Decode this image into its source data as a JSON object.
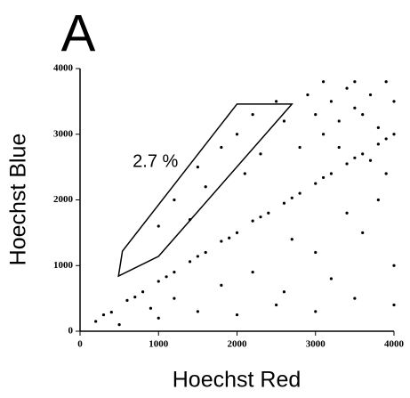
{
  "chart_data": {
    "type": "scatter",
    "panel_label": "A",
    "x_label": "Hoechst Red",
    "y_label": "Hoechst Blue",
    "xlim": [
      0,
      4000
    ],
    "ylim": [
      0,
      4000
    ],
    "xticks": [
      0,
      1000,
      2000,
      3000,
      4000
    ],
    "yticks": [
      0,
      1000,
      2000,
      3000,
      4000
    ],
    "color": "#000000",
    "x": [
      200,
      400,
      600,
      800,
      1000,
      1200,
      1400,
      1600,
      1800,
      2000,
      2200,
      2400,
      2600,
      2800,
      3000,
      3200,
      3400,
      3600,
      3800,
      4000,
      300,
      700,
      1100,
      1500,
      1900,
      2300,
      2700,
      3100,
      3500,
      3900,
      3100,
      3300,
      3500,
      3700,
      3900,
      3200,
      3400,
      3600,
      3800,
      4000,
      3000,
      3300,
      3700,
      3900,
      3500,
      2900,
      3100,
      2500,
      2600,
      2800,
      1200,
      1500,
      1800,
      2000,
      2200,
      1000,
      1600,
      2300,
      1400,
      2100,
      500,
      1000,
      1500,
      2000,
      2500,
      3000,
      3500,
      4000,
      1200,
      2200,
      3000,
      3600,
      3200,
      2700,
      3800,
      1800,
      2600,
      3400,
      4000,
      900
    ],
    "y": [
      150,
      290,
      470,
      600,
      760,
      900,
      1060,
      1200,
      1370,
      1500,
      1680,
      1800,
      1950,
      2100,
      2250,
      2400,
      2550,
      2700,
      2850,
      3000,
      250,
      520,
      830,
      1140,
      1420,
      1740,
      2030,
      2340,
      2640,
      2930,
      3000,
      3200,
      3400,
      3600,
      3800,
      3500,
      3700,
      3300,
      3100,
      3500,
      3300,
      2800,
      2600,
      2400,
      3800,
      3600,
      3800,
      3500,
      3200,
      2800,
      2000,
      2500,
      2800,
      3000,
      3300,
      1600,
      2200,
      2700,
      1700,
      2400,
      100,
      200,
      300,
      250,
      400,
      300,
      500,
      400,
      500,
      900,
      1200,
      1500,
      800,
      1400,
      2000,
      700,
      600,
      1800,
      1000,
      350
    ],
    "gate": {
      "x": [
        490,
        540,
        2000,
        2700,
        1000
      ],
      "y": [
        840,
        1220,
        3460,
        3460,
        1140
      ],
      "label": "2.7 %",
      "label_x": 960,
      "label_y": 2576
    }
  }
}
